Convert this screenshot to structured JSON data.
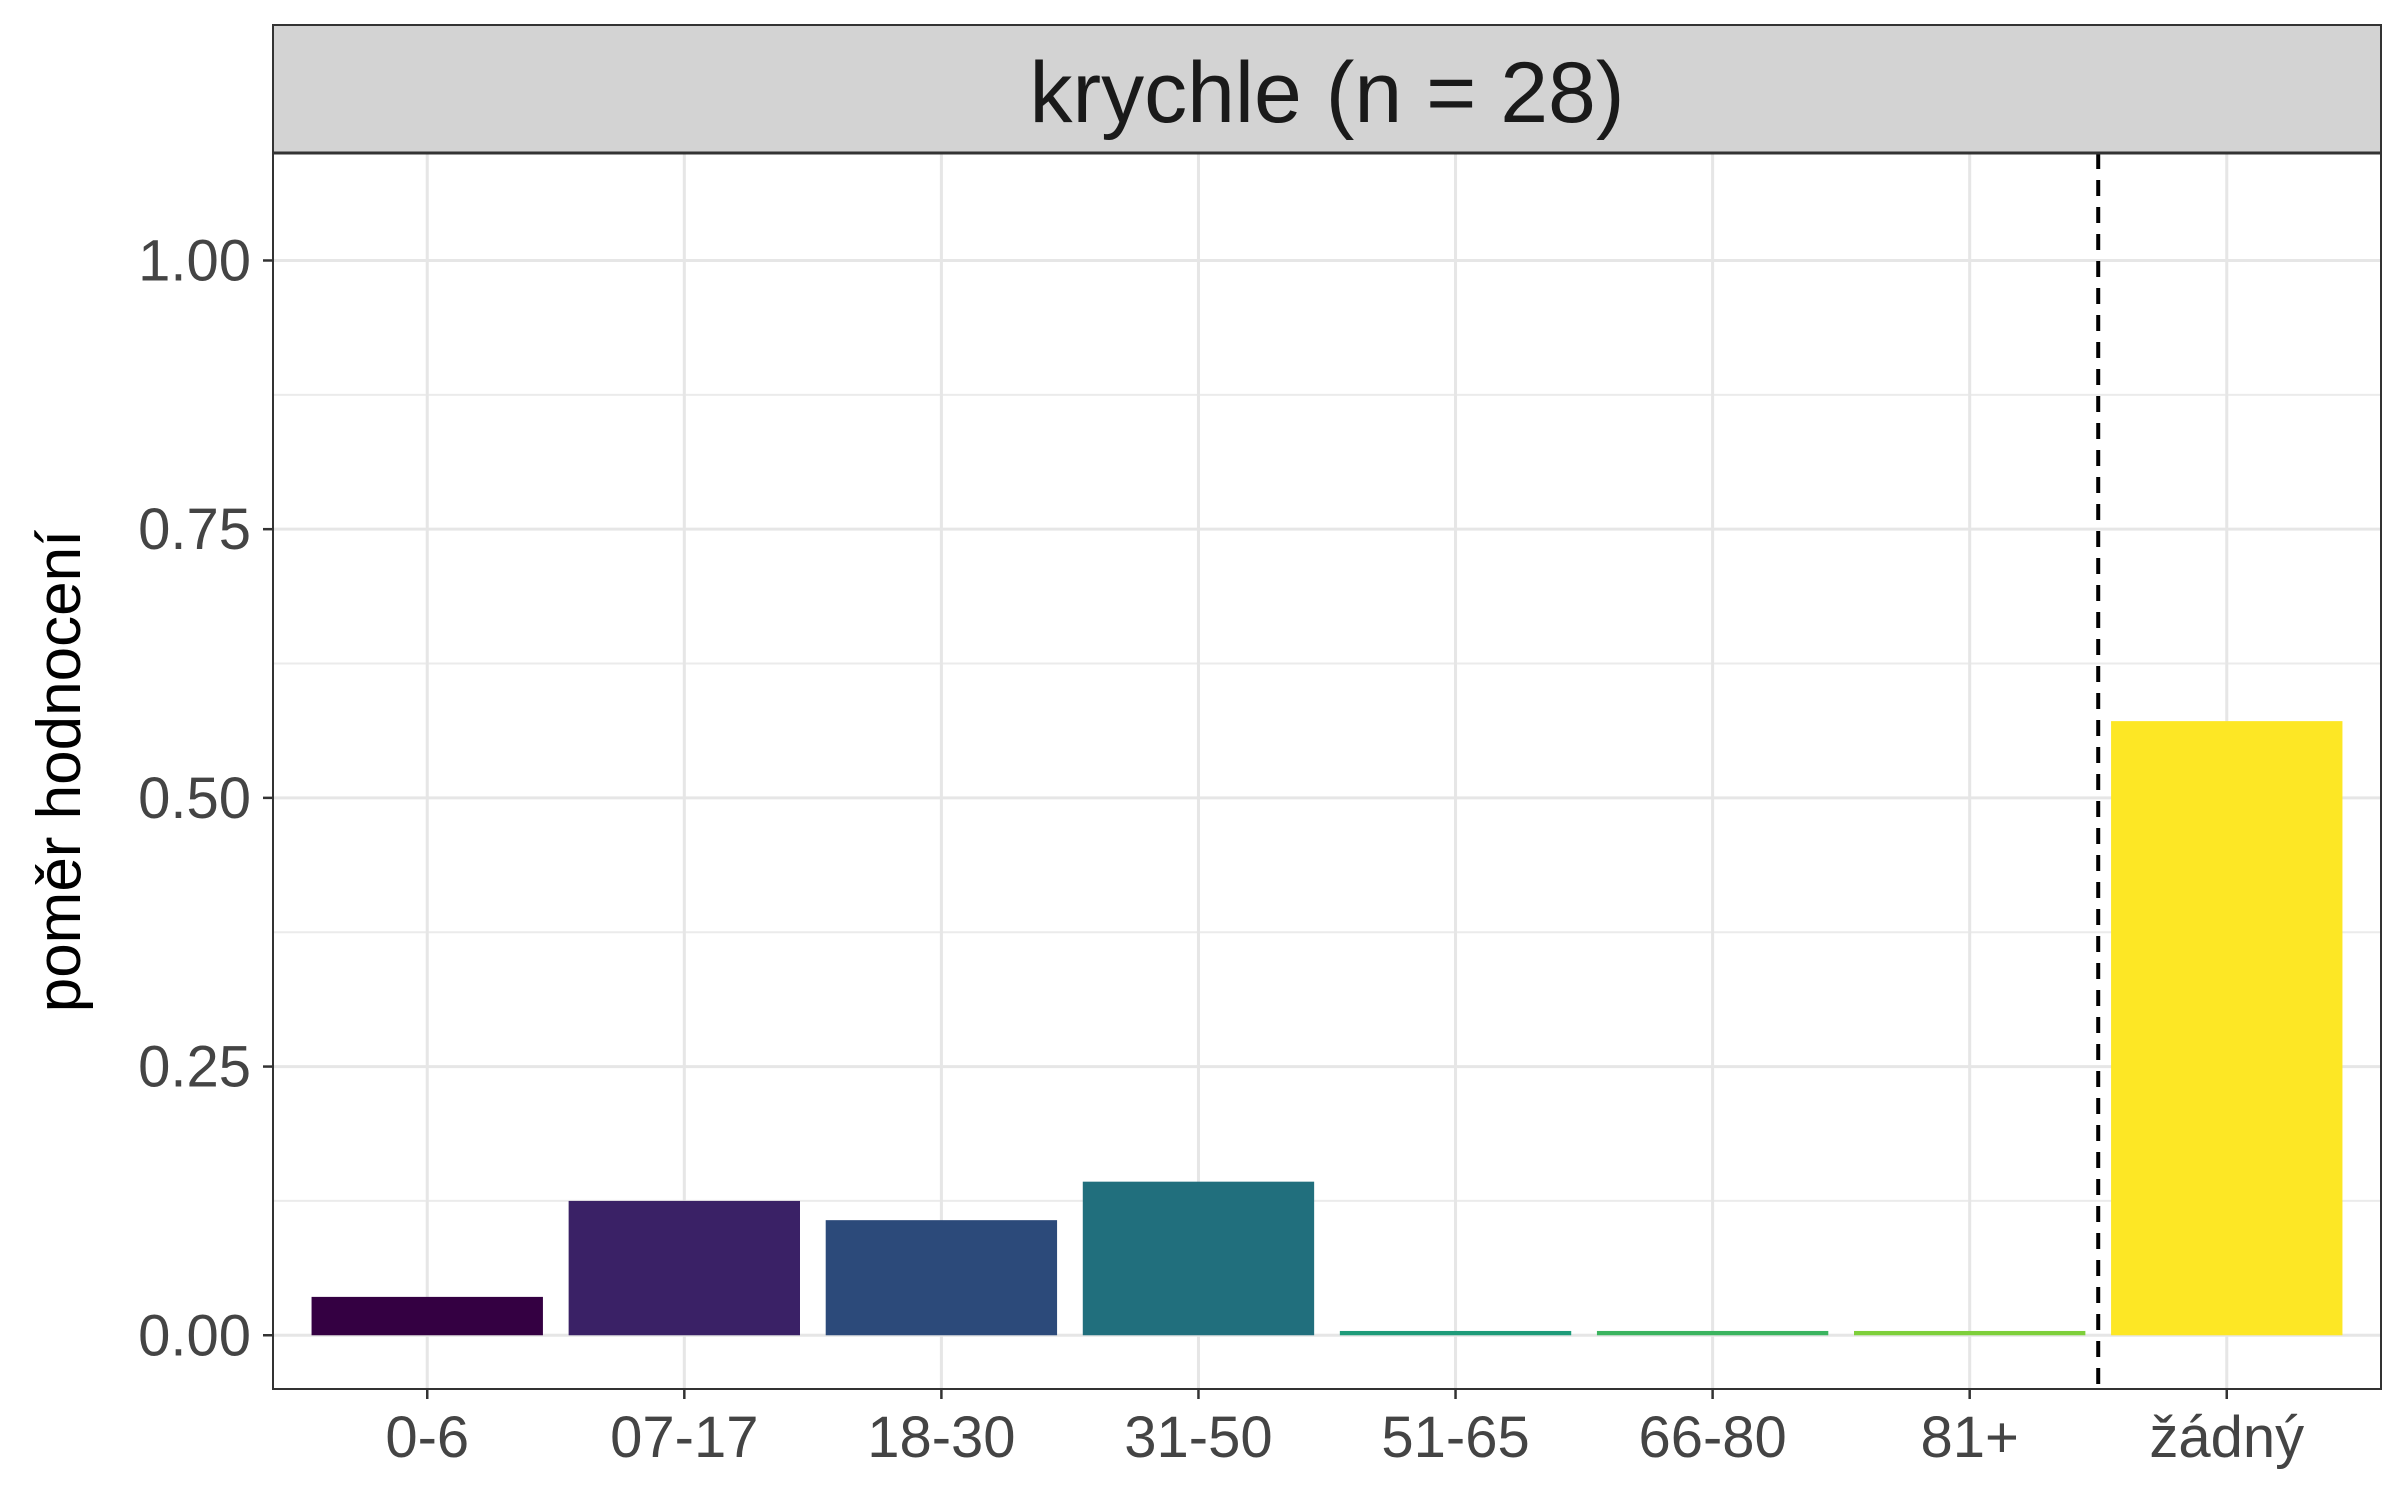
{
  "chart_data": {
    "type": "bar",
    "title": "krychle (n = 28)",
    "xlabel": "",
    "ylabel": "poměr hodnocení",
    "categories": [
      "0-6",
      "07-17",
      "18-30",
      "31-50",
      "51-65",
      "66-80",
      "81+",
      "žádný"
    ],
    "values": [
      0.0357,
      0.125,
      0.1071,
      0.1429,
      0.004,
      0.004,
      0.004,
      0.5714
    ],
    "colors": [
      "#340042",
      "#3a2166",
      "#2c4a7a",
      "#216f7d",
      "#1e9b79",
      "#3bb45f",
      "#7ecf3a",
      "#fde725"
    ],
    "ylim": [
      -0.05,
      1.1
    ],
    "yticks": [
      "0.00",
      "0.25",
      "0.50",
      "0.75",
      "1.00"
    ],
    "ytick_values": [
      0,
      0.25,
      0.5,
      0.75,
      1.0
    ],
    "reference_line": {
      "style": "dashed",
      "between_categories": [
        "81+",
        "žádný"
      ]
    },
    "grid": true,
    "legend": "none"
  }
}
